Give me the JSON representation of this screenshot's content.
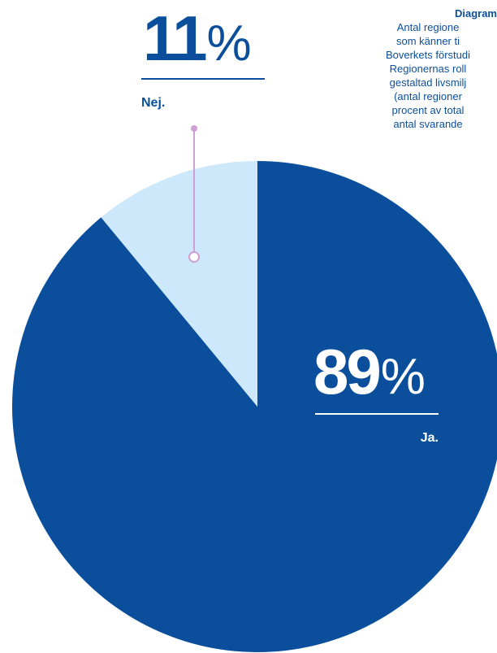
{
  "caption": {
    "title": "Diagram",
    "lines": [
      "Antal regione",
      "som känner ti",
      "Boverkets förstudi",
      "Regionernas roll",
      "gestaltad livsmilj",
      "(antal regioner",
      "procent av total",
      "antal svarande"
    ]
  },
  "chart_data": {
    "type": "pie",
    "categories": [
      "Ja.",
      "Nej."
    ],
    "values": [
      89,
      11
    ],
    "value_labels": [
      "89",
      "11"
    ],
    "percent_sign": "%",
    "colors": [
      "#0b4f9c",
      "#cde8fa"
    ],
    "leader_color": "#cfa0d6"
  }
}
